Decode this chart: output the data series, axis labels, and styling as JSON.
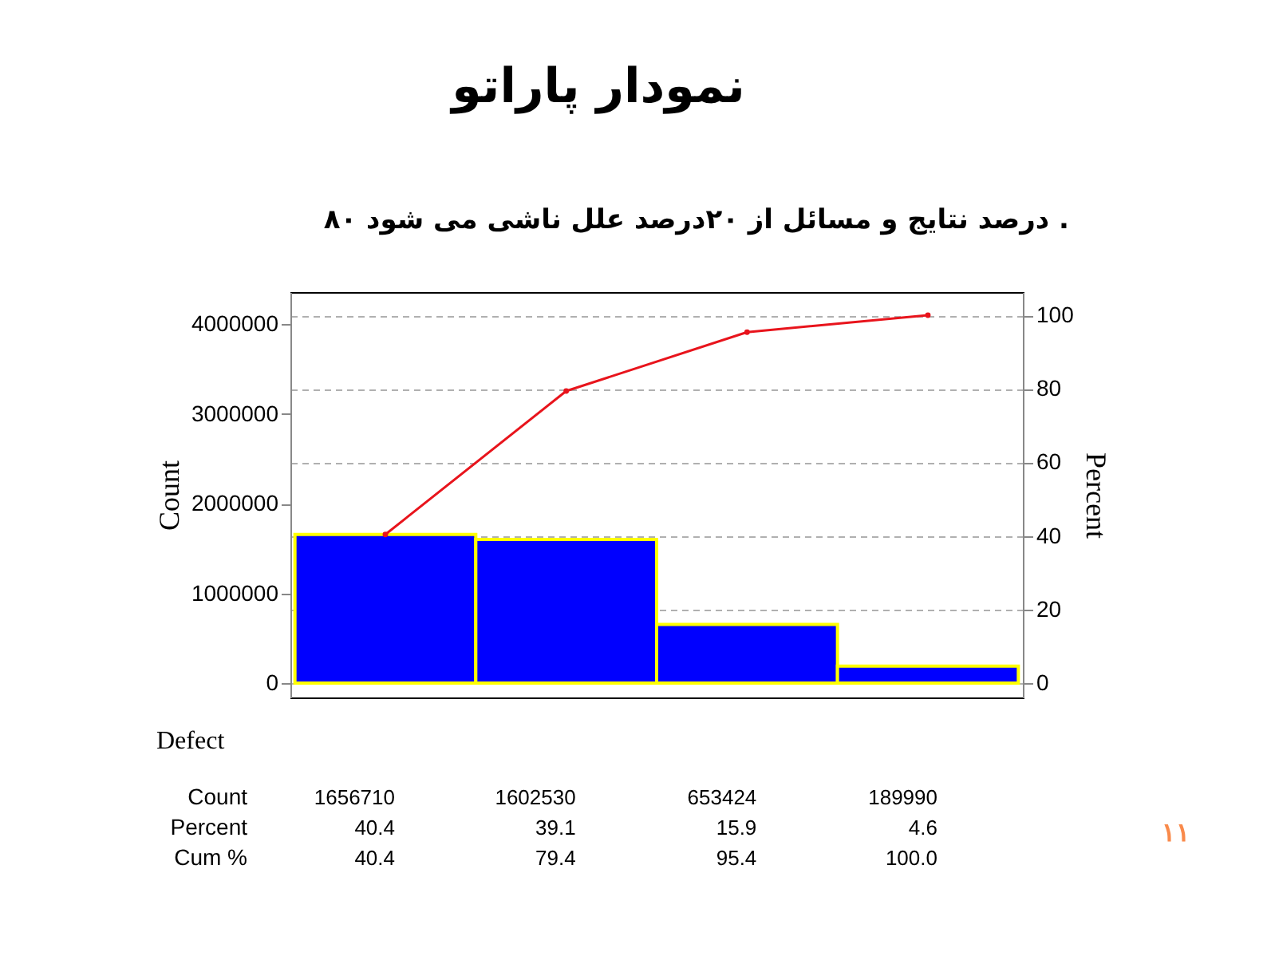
{
  "chart_data": {
    "type": "bar",
    "title": "نمودار پاراتو",
    "subtitle": "۸۰ درصد نتایج و مسائل از ۲۰درصد علل ناشی می شود .",
    "xlabel": "Defect",
    "ylabel": "Count",
    "y2label": "Percent",
    "categories": [
      null,
      null,
      null,
      null
    ],
    "series": [
      {
        "color": "#0000ff",
        "values": [
          1656710,
          1602530,
          653424,
          189990
        ],
        "value_labels": [
          "1656710",
          "1602530",
          "653424",
          "189990"
        ]
      },
      {
        "type": "line",
        "axis": "y2",
        "color": "#e8141c",
        "values": [
          40.4,
          79.4,
          95.4,
          100.0
        ],
        "value_labels": [
          "40.4",
          "79.4",
          "95.4",
          "100.0"
        ]
      }
    ],
    "annotations": [
      "Count",
      "Percent",
      "40.4",
      "39.1",
      "15.9",
      "4.6",
      "Cum %",
      "١١"
    ],
    "ylim": [
      -160000,
      4360000
    ],
    "yticks": [
      0,
      1000000,
      2000000,
      3000000,
      4000000
    ],
    "y2lim": [
      -3.9,
      106.3
    ],
    "y2ticks": [
      0,
      20,
      40,
      60,
      80,
      100
    ],
    "grid": true,
    "tick_labels": "y",
    "marker": "circle",
    "line_style": "solid"
  }
}
